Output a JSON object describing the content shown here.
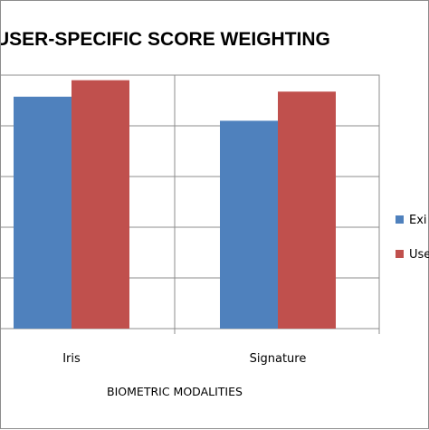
{
  "chart_data": {
    "type": "bar",
    "title": "USER-SPECIFIC SCORE WEIGHTING",
    "xlabel": "BIOMETRIC MODALITIES",
    "ylabel": "",
    "categories": [
      "Iris",
      "Signature"
    ],
    "series": [
      {
        "name": "Exi",
        "color": "#4f81bd",
        "values": [
          91.5,
          82.0
        ]
      },
      {
        "name": "Use",
        "color": "#c0504d",
        "values": [
          98.0,
          93.5
        ]
      }
    ],
    "ylim": [
      0,
      100
    ],
    "y_gridlines": [
      0,
      20,
      40,
      60,
      80,
      100
    ],
    "grid": true,
    "legend_position": "right"
  }
}
